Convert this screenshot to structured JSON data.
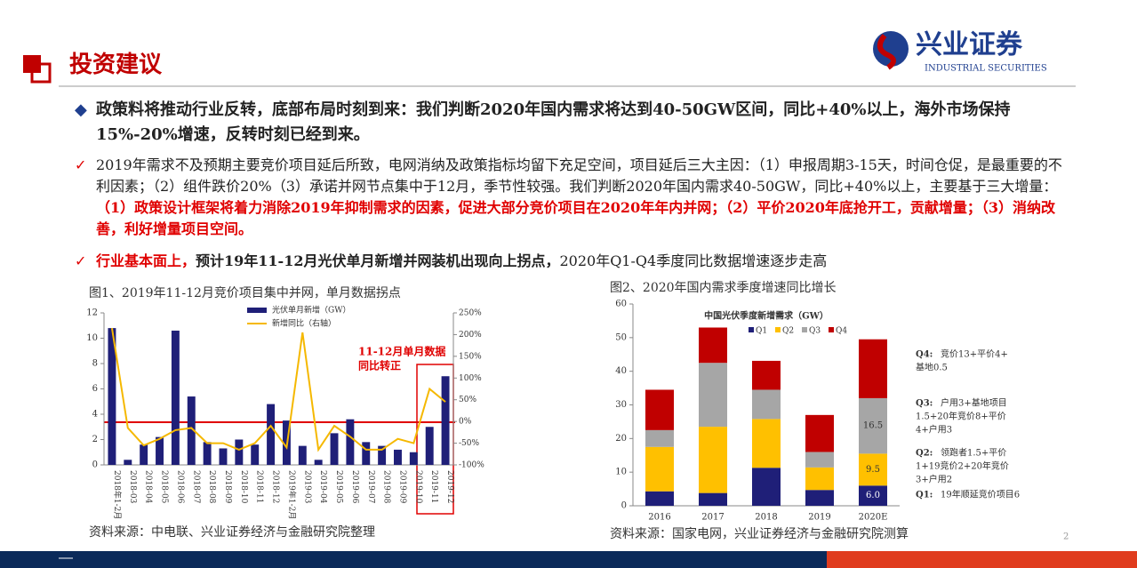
{
  "header": {
    "title": "投资建议",
    "logo_cn": "兴业证券",
    "logo_en": "INDUSTRIAL SECURITIES"
  },
  "bullets": [
    {
      "marker": "◆",
      "segments": [
        {
          "text": "政策料将推动行业反转，底部布局时刻到来：我们判断2020年国内需求将达到40-50GW区间，同比+40%以上，海外市场保持15%-20%增速，反转时刻已经到来。",
          "style": "bold"
        }
      ]
    },
    {
      "marker": "✓",
      "segments": [
        {
          "text": "2019年需求不及预期主要竞价项目延后所致，电网消纳及政策指标均留下充足空间，项目延后三大主因：（1）申报周期3-15天，时间仓促，是最重要的不利因素；（2）组件跌价20%（3）承诺并网节点集中于12月，季节性较强。我们判断2020年国内需求40-50GW，同比+40%以上，主要基于三大增量：",
          "style": "normal"
        },
        {
          "text": "（1）政策设计框架将着力消除2019年抑制需求的因素，促进大部分竞价项目在2020年年内并网；（2）平价2020年底抢开工，贡献增量；（3）消纳改善，利好增量项目空间。",
          "style": "red-bold"
        }
      ]
    },
    {
      "marker": "✓",
      "segments": [
        {
          "text": "行业基本面上，",
          "style": "red-bold"
        },
        {
          "text": "预计19年11-12月光伏单月新增并网装机出现向上拐点，",
          "style": "bold"
        },
        {
          "text": "2020年Q1-Q4季度同比数据增速逐步走高",
          "style": "normal"
        }
      ]
    }
  ],
  "chart_data": [
    {
      "type": "bar",
      "title": "图1、2019年11-12月竞价项目集中并网，单月数据拐点",
      "source": "资料来源：中电联、兴业证券经济与金融研究院整理",
      "annotation": [
        "11-12月单月数据",
        "同比转正"
      ],
      "categories": [
        "2018年1-2月",
        "2018-03",
        "2018-04",
        "2018-05",
        "2018-06",
        "2018-07",
        "2018-08",
        "2018-09",
        "2018-10",
        "2018-11",
        "2018-12",
        "2019年1-2月",
        "2019-03",
        "2019-04",
        "2019-05",
        "2019-06",
        "2019-07",
        "2019-08",
        "2019-09",
        "2019-10",
        "2019-11",
        "2019-12"
      ],
      "series": [
        {
          "name": "光伏单月新增（GW）",
          "type": "bar",
          "color": "#1f1f78",
          "values": [
            10.8,
            0.4,
            1.6,
            2.2,
            10.6,
            5.4,
            1.8,
            1.3,
            2.0,
            1.6,
            4.8,
            3.5,
            1.5,
            0.4,
            2.5,
            3.6,
            1.8,
            1.5,
            1.2,
            1.0,
            3.0,
            7.0
          ]
        },
        {
          "name": "新增同比（右轴）",
          "type": "line",
          "axis": "y2",
          "color": "#f5b800",
          "values": [
            215,
            -15,
            -55,
            -40,
            -20,
            -15,
            -50,
            -50,
            -65,
            -50,
            -10,
            -60,
            205,
            -65,
            -10,
            -35,
            -65,
            -65,
            -40,
            -50,
            75,
            45
          ]
        }
      ],
      "ylim": [
        0,
        12
      ],
      "yticks": [
        0,
        2,
        4,
        6,
        8,
        10,
        12
      ],
      "y2lim": [
        -100,
        250
      ],
      "y2ticks": [
        {
          "value": -100,
          "label": "-100%"
        },
        {
          "value": -50,
          "label": "-50%"
        },
        {
          "value": 0,
          "label": "0%"
        },
        {
          "value": 50,
          "label": "50%"
        },
        {
          "value": 100,
          "label": "100%"
        },
        {
          "value": 150,
          "label": "150%"
        },
        {
          "value": 200,
          "label": "200%"
        },
        {
          "value": 250,
          "label": "250%"
        }
      ]
    },
    {
      "type": "stacked_bar",
      "title": "图2、2020年国内需求季度增速同比增长",
      "subtitle": "中国光伏季度新增需求（GW）",
      "source": "资料来源：国家电网，兴业证券经济与金融研究院测算",
      "categories": [
        "2016",
        "2017",
        "2018",
        "2019",
        "2020E"
      ],
      "series": [
        {
          "name": "Q1",
          "color": "#1f1f78",
          "values": [
            4.3,
            3.8,
            11.3,
            4.7,
            6.0
          ],
          "value_labels": [
            null,
            null,
            null,
            null,
            "6.0"
          ]
        },
        {
          "name": "Q2",
          "color": "#ffc000",
          "values": [
            13.2,
            19.7,
            14.5,
            6.7,
            9.5
          ],
          "value_labels": [
            null,
            null,
            null,
            null,
            "9.5"
          ]
        },
        {
          "name": "Q3",
          "color": "#a6a6a6",
          "values": [
            5.0,
            19.0,
            8.7,
            4.6,
            16.5
          ],
          "value_labels": [
            null,
            null,
            null,
            null,
            "16.5"
          ]
        },
        {
          "name": "Q4",
          "color": "#c00000",
          "values": [
            12.0,
            10.5,
            8.6,
            11.0,
            17.5
          ]
        }
      ],
      "ylim": [
        0,
        60
      ],
      "yticks": [
        0,
        10,
        20,
        30,
        40,
        50,
        60
      ],
      "annotations": [
        {
          "label": "Q4:",
          "lines": [
            "竞价13+平价4+",
            "基地0.5"
          ]
        },
        {
          "label": "Q3:",
          "lines": [
            "户用3+基地项目",
            "1.5+20年竞价8+平价",
            "4+户用3"
          ]
        },
        {
          "label": "Q2:",
          "lines": [
            "领跑者1.5+平价",
            "1+19竞价2+20年竞价",
            "3+户用2"
          ]
        },
        {
          "label": "Q1:",
          "lines": [
            "19年顺延竞价项目6"
          ]
        }
      ]
    }
  ],
  "page_number": "2"
}
